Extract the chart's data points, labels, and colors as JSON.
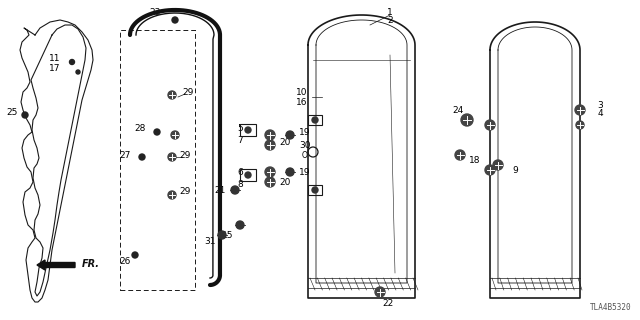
{
  "part_code": "TLA4B5320",
  "bg_color": "#ffffff",
  "line_color": "#1a1a1a",
  "fig_width": 6.4,
  "fig_height": 3.2
}
